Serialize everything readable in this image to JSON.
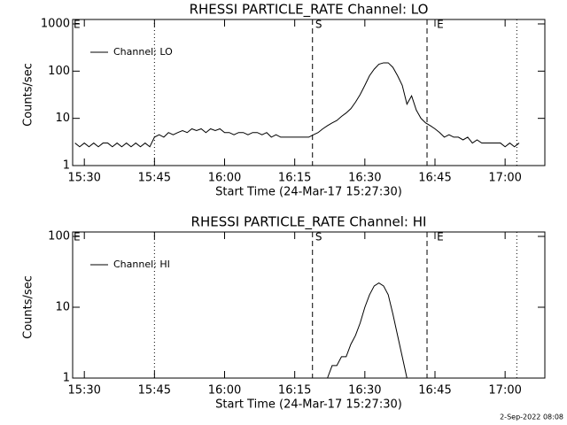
{
  "chart_data": [
    {
      "type": "line",
      "title": "RHESSI PARTICLE_RATE Channel: LO",
      "xlabel": "Start Time (24-Mar-17 15:27:30)",
      "ylabel": "Counts/sec",
      "log_y": true,
      "xlim": [
        927.5,
        1028.5
      ],
      "ylim": [
        1,
        1000
      ],
      "xticks": [
        {
          "value": 930,
          "label": "15:30"
        },
        {
          "value": 945,
          "label": "15:45"
        },
        {
          "value": 960,
          "label": "16:00"
        },
        {
          "value": 975,
          "label": "16:15"
        },
        {
          "value": 990,
          "label": "16:30"
        },
        {
          "value": 1005,
          "label": "16:45"
        },
        {
          "value": 1020,
          "label": "17:00"
        }
      ],
      "yticks": [
        1,
        10,
        100,
        1000
      ],
      "vlines": [
        {
          "value": 945,
          "style": "dotted"
        },
        {
          "value": 978.8,
          "style": "dashed"
        },
        {
          "value": 1003.3,
          "style": "dashed"
        },
        {
          "value": 1022.5,
          "style": "dotted"
        }
      ],
      "annotations": [
        {
          "text": "E",
          "x": 927.7
        },
        {
          "text": "S",
          "x": 979.4
        },
        {
          "text": "E",
          "x": 1005.4
        }
      ],
      "x": [
        928,
        929,
        930,
        931,
        932,
        933,
        934,
        935,
        936,
        937,
        938,
        939,
        940,
        941,
        942,
        943,
        944,
        945,
        946,
        947,
        948,
        949,
        950,
        951,
        952,
        953,
        954,
        955,
        956,
        957,
        958,
        959,
        960,
        961,
        962,
        963,
        964,
        965,
        966,
        967,
        968,
        969,
        970,
        971,
        972,
        973,
        974,
        975,
        976,
        977,
        978,
        979,
        980,
        981,
        982,
        983,
        984,
        985,
        986,
        987,
        988,
        989,
        990,
        991,
        992,
        993,
        994,
        995,
        996,
        997,
        998,
        999,
        1000,
        1001,
        1002,
        1003,
        1004,
        1005,
        1006,
        1007,
        1008,
        1009,
        1010,
        1011,
        1012,
        1013,
        1014,
        1015,
        1016,
        1017,
        1018,
        1019,
        1020,
        1021,
        1022,
        1023
      ],
      "series": [
        {
          "name": "Channel: LO",
          "color": "#000000",
          "values": [
            3,
            2.5,
            3,
            2.5,
            3,
            2.5,
            3,
            3,
            2.5,
            3,
            2.5,
            3,
            2.5,
            3,
            2.5,
            3,
            2.5,
            4,
            4.5,
            4,
            5,
            4.5,
            5,
            5.5,
            5,
            6,
            5.5,
            6,
            5,
            6,
            5.5,
            6,
            5,
            5,
            4.5,
            5,
            5,
            4.5,
            5,
            5,
            4.5,
            5,
            4,
            4.5,
            4,
            4,
            4,
            4,
            4,
            4,
            4,
            4.5,
            5,
            6,
            7,
            8,
            9,
            11,
            13,
            16,
            22,
            32,
            50,
            80,
            110,
            140,
            150,
            150,
            120,
            80,
            50,
            20,
            30,
            15,
            10,
            8,
            7,
            6,
            5,
            4,
            4.5,
            4,
            4,
            3.5,
            4,
            3,
            3.5,
            3,
            3,
            3,
            3,
            3,
            2.5,
            3,
            2.5,
            3
          ]
        }
      ]
    },
    {
      "type": "line",
      "title": "RHESSI PARTICLE_RATE Channel: HI",
      "xlabel": "Start Time (24-Mar-17 15:27:30)",
      "ylabel": "Counts/sec",
      "log_y": true,
      "xlim": [
        927.5,
        1028.5
      ],
      "ylim": [
        1,
        100
      ],
      "xticks": [
        {
          "value": 930,
          "label": "15:30"
        },
        {
          "value": 945,
          "label": "15:45"
        },
        {
          "value": 960,
          "label": "16:00"
        },
        {
          "value": 975,
          "label": "16:15"
        },
        {
          "value": 990,
          "label": "16:30"
        },
        {
          "value": 1005,
          "label": "16:45"
        },
        {
          "value": 1020,
          "label": "17:00"
        }
      ],
      "yticks": [
        1,
        10,
        100
      ],
      "vlines": [
        {
          "value": 945,
          "style": "dotted"
        },
        {
          "value": 978.8,
          "style": "dashed"
        },
        {
          "value": 1003.3,
          "style": "dashed"
        },
        {
          "value": 1022.5,
          "style": "dotted"
        }
      ],
      "annotations": [
        {
          "text": "E",
          "x": 927.7
        },
        {
          "text": "S",
          "x": 979.4
        },
        {
          "text": "E",
          "x": 1005.4
        }
      ],
      "x": [
        982,
        983,
        984,
        985,
        986,
        987,
        988,
        989,
        990,
        991,
        992,
        993,
        994,
        995,
        996,
        997,
        998,
        999
      ],
      "series": [
        {
          "name": "Channel: HI",
          "color": "#000000",
          "values": [
            1,
            1.5,
            1.5,
            2,
            2,
            3,
            4,
            6,
            10,
            15,
            20,
            22,
            20,
            15,
            8,
            4,
            2,
            1
          ]
        }
      ]
    }
  ],
  "footer": "2-Sep-2022 08:08"
}
